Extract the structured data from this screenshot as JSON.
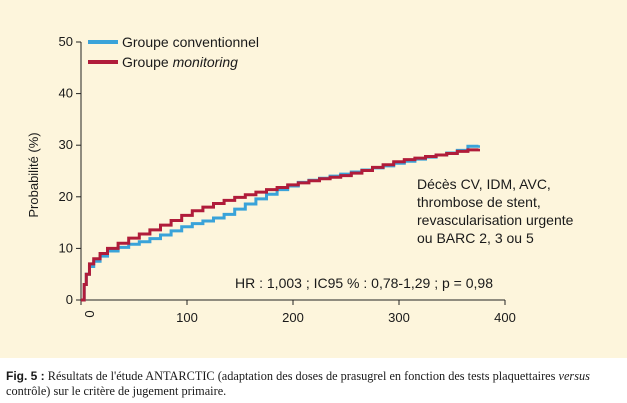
{
  "chart_data": {
    "type": "line",
    "xlabel": "",
    "ylabel": "Probabilité (%)",
    "xlim": [
      0,
      400
    ],
    "ylim": [
      0,
      50
    ],
    "xticks": [
      "0",
      "100",
      "200",
      "300",
      "400"
    ],
    "yticks": [
      "0",
      "10",
      "20",
      "30",
      "40",
      "50"
    ],
    "grid": false,
    "legend_position": "top-left",
    "series": [
      {
        "name": "Groupe conventionnel",
        "color": "#3aa3d9",
        "x": [
          0,
          3,
          5,
          8,
          12,
          18,
          25,
          35,
          45,
          55,
          65,
          75,
          85,
          95,
          105,
          115,
          125,
          135,
          145,
          155,
          165,
          175,
          185,
          195,
          205,
          215,
          225,
          235,
          245,
          255,
          265,
          275,
          285,
          295,
          305,
          315,
          325,
          335,
          345,
          355,
          365,
          375
        ],
        "y": [
          0,
          3,
          5,
          6.5,
          7.5,
          8.5,
          9.5,
          10.2,
          10.8,
          11.3,
          11.9,
          12.6,
          13.4,
          14.2,
          14.8,
          15.3,
          15.9,
          16.6,
          17.6,
          18.6,
          19.6,
          20.5,
          21.4,
          22.1,
          22.8,
          23.2,
          23.6,
          24.0,
          24.4,
          24.8,
          25.2,
          25.6,
          26.0,
          26.5,
          26.9,
          27.3,
          27.7,
          28.1,
          28.5,
          29.0,
          29.8,
          30.0
        ]
      },
      {
        "name": "Groupe monitoring",
        "color": "#b01c3a",
        "x": [
          0,
          3,
          5,
          8,
          12,
          18,
          25,
          35,
          45,
          55,
          65,
          75,
          85,
          95,
          105,
          115,
          125,
          135,
          145,
          155,
          165,
          175,
          185,
          195,
          205,
          215,
          225,
          235,
          245,
          255,
          265,
          275,
          285,
          295,
          305,
          315,
          325,
          335,
          345,
          355,
          365,
          375
        ],
        "y": [
          0,
          3,
          5,
          7,
          8,
          9,
          10,
          11,
          12,
          12.8,
          13.6,
          14.5,
          15.4,
          16.4,
          17.3,
          18.0,
          18.7,
          19.3,
          19.9,
          20.4,
          20.9,
          21.4,
          21.8,
          22.3,
          22.7,
          23.1,
          23.5,
          23.8,
          24.1,
          24.6,
          25.1,
          25.7,
          26.2,
          26.8,
          27.2,
          27.5,
          27.8,
          28.1,
          28.4,
          28.8,
          29.1,
          29.3
        ]
      }
    ],
    "annotations": [
      "Décès CV, IDM, AVC,",
      "thrombose de stent,",
      "revascularisation urgente",
      "ou BARC 2, 3 ou 5"
    ],
    "stats": "HR : 1,003 ; IC95 % : 0,78-1,29 ; p = 0,98"
  },
  "legend": {
    "conventionnel_label": "Groupe conventionnel",
    "monitoring_prefix": "Groupe ",
    "monitoring_italic": "monitoring"
  },
  "caption": {
    "fig_label": "Fig. 5 :",
    "text_before": " Résultats de l'étude ANTARCTIC (adaptation des doses de prasugrel en fonction des tests plaquettaires ",
    "text_italic": "versus",
    "text_after": " contrôle) sur le critère de jugement primaire."
  }
}
